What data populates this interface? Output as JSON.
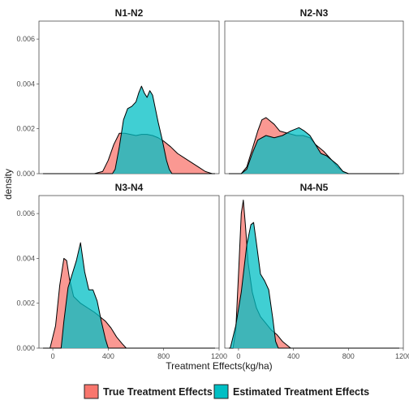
{
  "colors": {
    "true_effects": "#F8766D",
    "estimated_effects": "#00BFC4"
  },
  "chart_data": {
    "type": "area",
    "subtype": "density",
    "facet_layout": "2x2",
    "xlabel": "Treatment Effects(kg/ha)",
    "ylabel": "density",
    "xlim": [
      -100,
      1200
    ],
    "ylim": [
      0,
      0.0068
    ],
    "x_ticks": [
      0,
      400,
      800,
      1200
    ],
    "x_tick_labels": [
      "0",
      "400",
      "800",
      "1200"
    ],
    "y_ticks": [
      0,
      0.002,
      0.004,
      0.006
    ],
    "y_tick_labels": [
      "0.000",
      "0.002",
      "0.004",
      "0.006"
    ],
    "grid": false,
    "legend_position": "bottom",
    "legend": [
      "True Treatment Effects",
      "Estimated Treatment Effects"
    ],
    "panels": [
      {
        "title": "N1-N2",
        "series": [
          {
            "name": "True Treatment Effects",
            "color": "#F8766D",
            "x": [
              -70,
              300,
              360,
              400,
              440,
              480,
              520,
              560,
              600,
              640,
              680,
              720,
              760,
              800,
              850,
              900,
              950,
              1000,
              1050,
              1100,
              1150,
              1170
            ],
            "y": [
              0,
              0,
              0.0001,
              0.0006,
              0.0013,
              0.0018,
              0.0018,
              0.00175,
              0.0017,
              0.00175,
              0.00175,
              0.0017,
              0.0016,
              0.00145,
              0.0012,
              0.0009,
              0.0007,
              0.0005,
              0.0003,
              0.0001,
              0,
              0
            ]
          },
          {
            "name": "Estimated Treatment Effects",
            "color": "#00BFC4",
            "x": [
              -70,
              430,
              450,
              480,
              510,
              540,
              570,
              600,
              620,
              640,
              660,
              680,
              700,
              720,
              740,
              760,
              790,
              820,
              840,
              860,
              1170
            ],
            "y": [
              0,
              0,
              0.0002,
              0.0012,
              0.0024,
              0.0029,
              0.003,
              0.0032,
              0.0036,
              0.0039,
              0.0036,
              0.0034,
              0.0037,
              0.0035,
              0.0029,
              0.0023,
              0.0015,
              0.0006,
              0.0002,
              0,
              0
            ]
          }
        ]
      },
      {
        "title": "N2-N3",
        "series": [
          {
            "name": "True Treatment Effects",
            "color": "#F8766D",
            "x": [
              -70,
              20,
              60,
              100,
              140,
              170,
              200,
              220,
              260,
              300,
              360,
              420,
              470,
              520,
              560,
              620,
              680,
              720,
              760,
              800,
              1170
            ],
            "y": [
              0,
              0,
              0.0003,
              0.0011,
              0.0019,
              0.0024,
              0.0025,
              0.0024,
              0.0022,
              0.0019,
              0.0018,
              0.0017,
              0.0017,
              0.0016,
              0.0013,
              0.001,
              0.0006,
              0.0003,
              0.0001,
              0,
              0
            ]
          },
          {
            "name": "Estimated Treatment Effects",
            "color": "#00BFC4",
            "x": [
              -70,
              20,
              60,
              100,
              140,
              200,
              260,
              320,
              380,
              440,
              480,
              520,
              560,
              600,
              640,
              680,
              720,
              760,
              800,
              1170
            ],
            "y": [
              0,
              0,
              0.0002,
              0.0009,
              0.0015,
              0.0017,
              0.0016,
              0.0017,
              0.0019,
              0.00205,
              0.0019,
              0.0017,
              0.0013,
              0.0009,
              0.0008,
              0.0006,
              0.0004,
              0.0001,
              0,
              0
            ]
          }
        ]
      },
      {
        "title": "N3-N4",
        "series": [
          {
            "name": "True Treatment Effects",
            "color": "#F8766D",
            "x": [
              -70,
              -20,
              20,
              50,
              80,
              100,
              120,
              150,
              200,
              250,
              300,
              340,
              380,
              420,
              460,
              500,
              530,
              1170
            ],
            "y": [
              0,
              0,
              0.001,
              0.0028,
              0.004,
              0.0039,
              0.0031,
              0.0023,
              0.002,
              0.0018,
              0.0016,
              0.0014,
              0.0012,
              0.0009,
              0.0005,
              0.0002,
              0,
              0
            ]
          },
          {
            "name": "Estimated Treatment Effects",
            "color": "#00BFC4",
            "x": [
              -70,
              60,
              80,
              110,
              140,
              170,
              200,
              230,
              260,
              290,
              320,
              350,
              380,
              400,
              1170
            ],
            "y": [
              0,
              0,
              0.0012,
              0.0027,
              0.0033,
              0.0039,
              0.0047,
              0.0034,
              0.0026,
              0.0026,
              0.0021,
              0.0012,
              0.0004,
              0,
              0
            ]
          }
        ]
      },
      {
        "title": "N4-N5",
        "series": [
          {
            "name": "True Treatment Effects",
            "color": "#F8766D",
            "x": [
              -70,
              -40,
              -20,
              0,
              20,
              35,
              50,
              70,
              100,
              130,
              160,
              200,
              240,
              280,
              320,
              360,
              380,
              1170
            ],
            "y": [
              0,
              0,
              0.0008,
              0.0033,
              0.006,
              0.0066,
              0.0055,
              0.0038,
              0.0025,
              0.0018,
              0.0014,
              0.0011,
              0.0008,
              0.0006,
              0.0003,
              0.0001,
              0,
              0
            ]
          },
          {
            "name": "Estimated Treatment Effects",
            "color": "#00BFC4",
            "x": [
              -70,
              -60,
              -20,
              20,
              60,
              90,
              110,
              130,
              160,
              190,
              220,
              250,
              270,
              290,
              1170
            ],
            "y": [
              0,
              0,
              0.001,
              0.0025,
              0.0046,
              0.0055,
              0.0056,
              0.0047,
              0.0033,
              0.003,
              0.0026,
              0.0013,
              0.0003,
              0,
              0
            ]
          }
        ]
      }
    ]
  }
}
